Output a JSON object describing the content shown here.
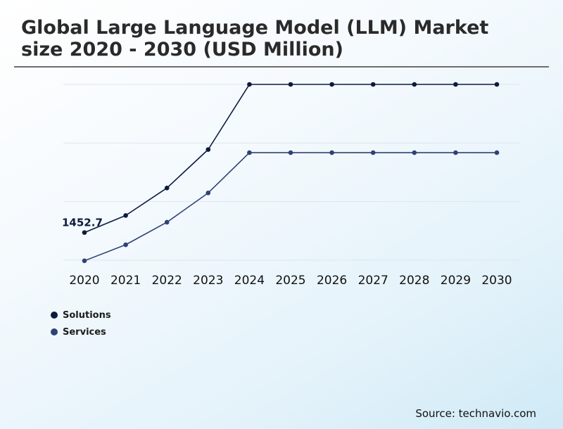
{
  "header": {
    "title_line1": "Global Large Language Model (LLM) Market",
    "title_line2": "size 2020 - 2030 (USD Million)"
  },
  "source": "Source: technavio.com",
  "colors": {
    "solutions": "#0d1b3e",
    "services": "#2f4373",
    "grid": "#dde6ee",
    "title": "#2a2a2a"
  },
  "chart_data": {
    "type": "line",
    "title": "Global Large Language Model (LLM) Market size 2020 - 2030 (USD Million)",
    "xlabel": "",
    "ylabel": "",
    "x": [
      "2020",
      "2021",
      "2022",
      "2023",
      "2024",
      "2025",
      "2026",
      "2027",
      "2028",
      "2029",
      "2030"
    ],
    "series": [
      {
        "name": "Solutions",
        "color": "#0d1b3e",
        "values": [
          1452.7,
          1670,
          2020,
          2510,
          3340,
          3340,
          3340,
          3340,
          3340,
          3340,
          3340
        ]
      },
      {
        "name": "Services",
        "color": "#2f4373",
        "values": [
          1093,
          1297,
          1584,
          1957,
          2470,
          2470,
          2470,
          2470,
          2470,
          2470,
          2470
        ]
      }
    ],
    "ylim": [
      1100,
      3340
    ],
    "y_ticks_shown": false,
    "grid": "horizontal",
    "data_labels": [
      {
        "series": "Solutions",
        "x": "2020",
        "text": "1452.7"
      }
    ],
    "legend": "bottom-left"
  }
}
